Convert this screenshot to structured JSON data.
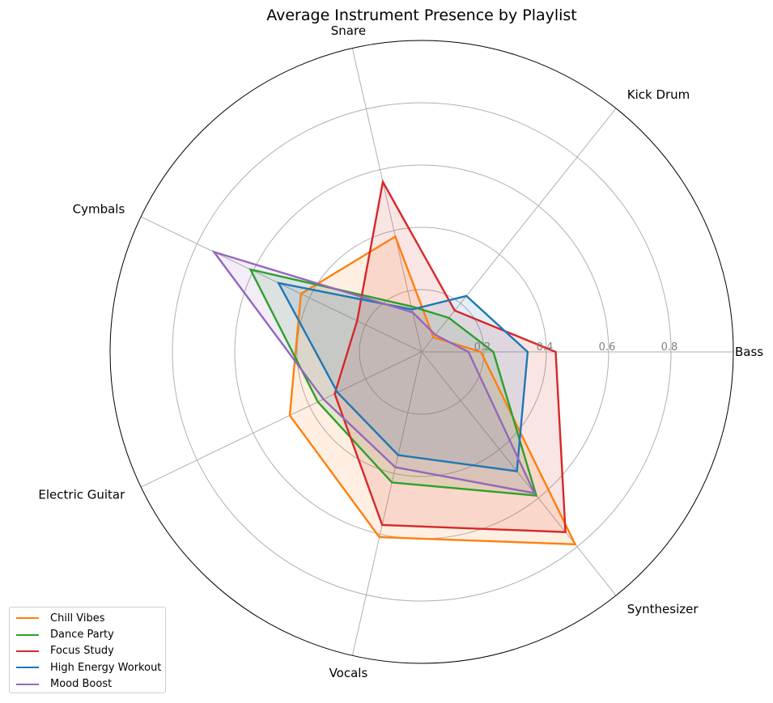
{
  "chart_data": {
    "type": "radar",
    "title": "Average Instrument Presence by Playlist",
    "categories": [
      "Bass",
      "Kick Drum",
      "Snare",
      "Cymbals",
      "Electric Guitar",
      "Vocals",
      "Synthesizer"
    ],
    "rlim": [
      0,
      1.0
    ],
    "r_ticks": [
      0.2,
      0.4,
      0.6,
      0.8
    ],
    "r_tick_labels": [
      "0.2",
      "0.4",
      "0.6",
      "0.8"
    ],
    "grid": true,
    "legend_position": "lower-left",
    "series": [
      {
        "name": "Chill Vibes",
        "color": "#ff7f0e",
        "values": [
          0.19,
          0.06,
          0.38,
          0.43,
          0.47,
          0.61,
          0.79
        ]
      },
      {
        "name": "Dance Party",
        "color": "#2ca02c",
        "values": [
          0.23,
          0.14,
          0.15,
          0.61,
          0.37,
          0.43,
          0.59
        ]
      },
      {
        "name": "Focus Study",
        "color": "#d62728",
        "values": [
          0.43,
          0.17,
          0.56,
          0.23,
          0.31,
          0.57,
          0.74
        ]
      },
      {
        "name": "High Energy Workout",
        "color": "#1f77b4",
        "values": [
          0.34,
          0.23,
          0.14,
          0.51,
          0.3,
          0.34,
          0.49
        ]
      },
      {
        "name": "Mood Boost",
        "color": "#9467bd",
        "values": [
          0.15,
          0.07,
          0.13,
          0.74,
          0.35,
          0.38,
          0.58
        ]
      }
    ]
  }
}
